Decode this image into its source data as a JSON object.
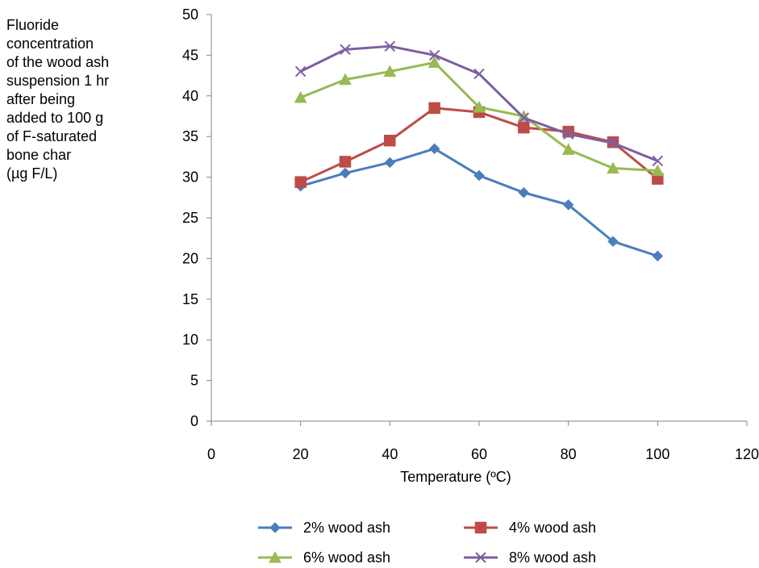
{
  "chart_data": {
    "type": "line",
    "ylabel_lines": [
      "Fluoride",
      "concentration",
      "of the wood ash",
      "suspension 1 hr",
      "after being",
      "added to 100 g",
      "of F-saturated",
      "bone char",
      "(µg F/L)"
    ],
    "xlabel": "Temperature (ºC)",
    "xlim": [
      0,
      120
    ],
    "ylim": [
      0,
      50
    ],
    "xticks": [
      0,
      20,
      40,
      60,
      80,
      100,
      120
    ],
    "yticks": [
      0,
      5,
      10,
      15,
      20,
      25,
      30,
      35,
      40,
      45,
      50
    ],
    "x": [
      20,
      30,
      40,
      50,
      60,
      70,
      80,
      90,
      100
    ],
    "grid": false,
    "legend_position": "bottom",
    "series": [
      {
        "name": "2% wood ash",
        "color": "#4a7ebb",
        "marker": "diamond",
        "values": [
          28.9,
          30.5,
          31.8,
          33.5,
          30.2,
          28.1,
          26.6,
          22.1,
          20.3
        ]
      },
      {
        "name": "4% wood ash",
        "color": "#be4b48",
        "marker": "square",
        "values": [
          29.4,
          31.9,
          34.5,
          38.5,
          38.0,
          36.1,
          35.6,
          34.3,
          29.8
        ]
      },
      {
        "name": "6% wood ash",
        "color": "#98b954",
        "marker": "triangle",
        "values": [
          39.8,
          42.0,
          43.0,
          44.1,
          38.6,
          37.5,
          33.4,
          31.1,
          30.8
        ]
      },
      {
        "name": "8% wood ash",
        "color": "#7d5fa0",
        "marker": "x",
        "values": [
          43.0,
          45.7,
          46.1,
          45.0,
          42.7,
          37.3,
          35.3,
          34.2,
          32.0
        ]
      }
    ]
  }
}
